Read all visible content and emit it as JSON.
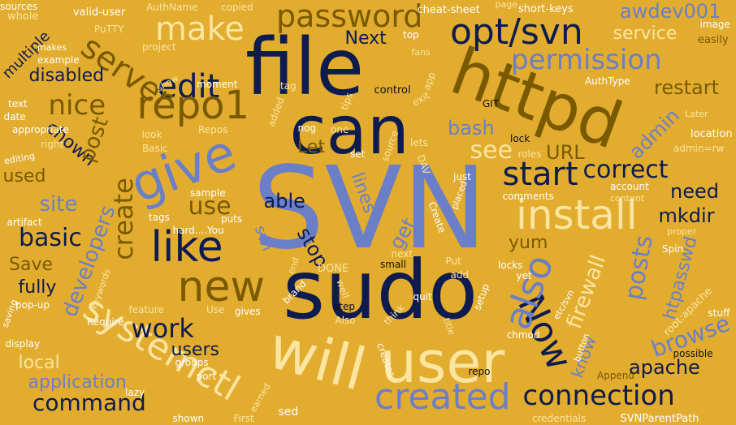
{
  "colors": {
    "background": "#e2ac2f",
    "navy": "#1a2a6c",
    "dark": "#0d1b4f",
    "brown": "#7a5a00",
    "periwinkle": "#6b7fc8",
    "cream": "#fbe5a0",
    "white": "#ffffff",
    "black": "#111111"
  },
  "words": [
    "SVN",
    "sudo",
    "file",
    "can",
    "user",
    "httpd",
    "will",
    "give",
    "install",
    "like",
    "new",
    "edit",
    "repo1",
    "password",
    "make",
    "opt/svn",
    "start",
    "Now",
    "also",
    "server",
    "permission",
    "created",
    "systemctl",
    "connection",
    "command",
    "application",
    "see",
    "correct",
    "posts",
    "developers",
    "create",
    "nice",
    "site",
    "basic",
    "work",
    "browse",
    "firewall",
    "htpasswd",
    "apache",
    "mkdir",
    "awdev001",
    "restart",
    "service",
    "bash",
    "Let",
    "disabled",
    "multiple",
    "chown",
    "post",
    "URL",
    "use",
    "able",
    "stop",
    "get",
    "lines",
    "yum",
    "Next",
    "users",
    "local",
    "know",
    "need",
    "fully",
    "Save",
    "admin",
    "used",
    "root:apache",
    "cheat-sheet",
    "short-keys",
    "valid-user",
    "AuthName",
    "copied",
    "page",
    "image",
    "easily",
    "top",
    "fans",
    "makes",
    "example",
    "PuTTY",
    "whole",
    "sources",
    "project",
    "control",
    "AuthType",
    "exit",
    "app",
    "GIT",
    "Later",
    "location",
    "admin=rw",
    "lock",
    "roles",
    "moment",
    "show",
    "tag",
    "tips",
    "added",
    "text",
    "date",
    "appropriate",
    "right",
    "look",
    "Repos",
    "Basic",
    "nog",
    "one",
    "lets",
    "set",
    "source",
    "DAV",
    "editing",
    "comments",
    "content",
    "account",
    "just",
    "placed",
    "Create",
    "artifact",
    "tags",
    "puts",
    "sample",
    "hard....You",
    "svn",
    "Spin",
    "proper",
    "keywords",
    "end",
    "DONE",
    "small",
    "next",
    "Put",
    "locks",
    "yet",
    "add",
    "pop-up",
    "brand",
    "well",
    "quit",
    "setup",
    "etc/svn",
    "stuff",
    "possible",
    "saving",
    "feature",
    "Use",
    "step",
    "think",
    "Require",
    "gives",
    "Also",
    "title",
    "chmod",
    "button",
    "display",
    "groups",
    "port",
    "creates",
    "repo",
    "Append",
    "lazy",
    "shown",
    "earned",
    "First",
    "sed",
    "credentials",
    "SVNParentPath"
  ]
}
